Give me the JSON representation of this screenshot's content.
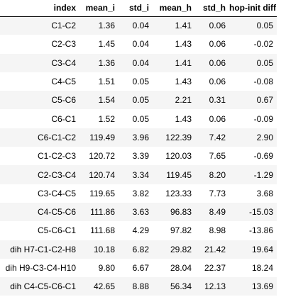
{
  "table": {
    "columns": [
      "index",
      "mean_i",
      "std_i",
      "mean_h",
      "std_h",
      "hop-init diff"
    ],
    "rows": [
      [
        "C1-C2",
        "1.36",
        "0.04",
        "1.41",
        "0.06",
        "0.05"
      ],
      [
        "C2-C3",
        "1.45",
        "0.04",
        "1.43",
        "0.06",
        "-0.02"
      ],
      [
        "C3-C4",
        "1.36",
        "0.04",
        "1.41",
        "0.06",
        "0.05"
      ],
      [
        "C4-C5",
        "1.51",
        "0.05",
        "1.43",
        "0.06",
        "-0.08"
      ],
      [
        "C5-C6",
        "1.54",
        "0.05",
        "2.21",
        "0.31",
        "0.67"
      ],
      [
        "C6-C1",
        "1.52",
        "0.05",
        "1.43",
        "0.06",
        "-0.09"
      ],
      [
        "C6-C1-C2",
        "119.49",
        "3.96",
        "122.39",
        "7.42",
        "2.90"
      ],
      [
        "C1-C2-C3",
        "120.72",
        "3.39",
        "120.03",
        "7.65",
        "-0.69"
      ],
      [
        "C2-C3-C4",
        "120.74",
        "3.34",
        "119.45",
        "8.20",
        "-1.29"
      ],
      [
        "C3-C4-C5",
        "119.65",
        "3.82",
        "123.33",
        "7.73",
        "3.68"
      ],
      [
        "C4-C5-C6",
        "111.86",
        "3.63",
        "96.83",
        "8.49",
        "-15.03"
      ],
      [
        "C5-C6-C1",
        "111.68",
        "4.29",
        "97.82",
        "8.98",
        "-13.86"
      ],
      [
        "dih H7-C1-C2-H8",
        "10.18",
        "6.82",
        "29.82",
        "21.42",
        "19.64"
      ],
      [
        "dih H9-C3-C4-H10",
        "9.80",
        "6.67",
        "28.04",
        "22.37",
        "18.24"
      ],
      [
        "dih C4-C5-C6-C1",
        "42.65",
        "8.88",
        "56.34",
        "12.13",
        "13.69"
      ]
    ]
  }
}
